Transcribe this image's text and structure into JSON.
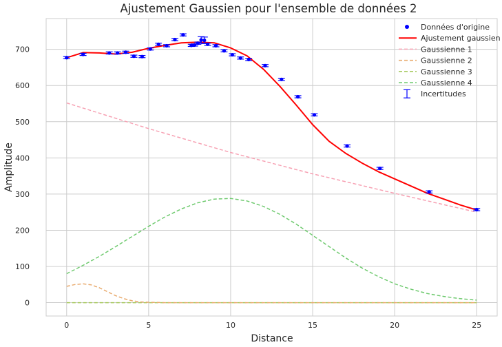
{
  "chart_data": {
    "type": "line",
    "title": "Ajustement Gaussien pour l'ensemble de données 2",
    "xlabel": "Distance",
    "ylabel": "Amplitude",
    "xlim": [
      -1.25,
      26.25
    ],
    "ylim": [
      -37,
      785
    ],
    "xticks": [
      0,
      5,
      10,
      15,
      20,
      25
    ],
    "yticks": [
      0,
      100,
      200,
      300,
      400,
      500,
      600,
      700
    ],
    "grid": true,
    "legend_position": "top-right",
    "data_points": {
      "name": "Données d'origine",
      "color": "#0000ff",
      "x": [
        0,
        1,
        2.6,
        3.1,
        3.6,
        4.1,
        4.6,
        5.1,
        5.6,
        6.1,
        6.6,
        7.1,
        7.6,
        7.8,
        8.0,
        8.2,
        8.4,
        8.6,
        9.1,
        9.6,
        10.1,
        10.6,
        11.1,
        12.1,
        13.1,
        14.1,
        15.1,
        17.1,
        19.1,
        22.1,
        25.0
      ],
      "y": [
        677,
        686,
        690,
        690,
        692,
        681,
        680,
        701,
        714,
        710,
        727,
        740,
        711,
        712,
        717,
        726,
        725,
        714,
        710,
        696,
        685,
        676,
        672,
        655,
        617,
        569,
        519,
        433,
        371,
        306,
        257
      ]
    },
    "error_bars": {
      "name": "Incertitudes",
      "color": "#0000ff",
      "x": [
        0,
        1,
        2.6,
        3.1,
        3.6,
        4.1,
        4.6,
        5.1,
        5.6,
        6.1,
        6.6,
        7.1,
        7.6,
        7.8,
        8.0,
        8.2,
        8.4,
        8.6,
        9.1,
        9.6,
        10.1,
        10.6,
        11.1,
        12.1,
        13.1,
        14.1,
        15.1,
        17.1,
        19.1,
        22.1,
        25.0
      ],
      "y": [
        677,
        686,
        690,
        690,
        692,
        681,
        680,
        701,
        714,
        710,
        727,
        740,
        711,
        712,
        717,
        726,
        725,
        714,
        710,
        696,
        685,
        676,
        672,
        655,
        617,
        569,
        519,
        433,
        371,
        306,
        257
      ],
      "err": [
        3,
        3,
        3,
        3,
        3,
        3,
        3,
        3,
        3,
        3,
        3,
        3,
        3,
        3,
        3,
        9,
        9,
        3,
        3,
        3,
        3,
        3,
        3,
        3,
        3,
        3,
        3,
        3,
        3,
        3,
        3
      ]
    },
    "series": [
      {
        "name": "Ajustement gaussien",
        "color": "#ff0000",
        "style": "solid",
        "x": [
          0,
          1,
          2,
          3,
          4,
          5,
          6,
          7,
          8,
          9,
          10,
          11,
          12,
          13,
          14,
          15,
          16,
          17,
          18,
          19,
          20,
          21,
          22,
          23,
          24,
          25
        ],
        "y": [
          677,
          691,
          690,
          687,
          692,
          703,
          711,
          718,
          720,
          718,
          704,
          682,
          645,
          598,
          546,
          492,
          446,
          413,
          386,
          362,
          342,
          322,
          302,
          286,
          270,
          256
        ]
      },
      {
        "name": "Gaussienne 1",
        "color": "#f7a1b3",
        "style": "dashed",
        "x": [
          0,
          5,
          10,
          15,
          20,
          25
        ],
        "y": [
          552,
          481,
          415,
          356,
          302,
          250
        ]
      },
      {
        "name": "Gaussienne 2",
        "color": "#e8a96b",
        "style": "dashed",
        "x": [
          0,
          0.5,
          1,
          1.5,
          2,
          2.5,
          3,
          3.5,
          4,
          4.5,
          5,
          6,
          8,
          10,
          15,
          20,
          25
        ],
        "y": [
          45,
          50,
          52,
          49,
          41,
          30,
          19,
          11,
          5,
          2,
          1,
          0,
          0,
          0,
          0,
          0,
          0
        ]
      },
      {
        "name": "Gaussienne 3",
        "color": "#a6c95c",
        "style": "dashed",
        "x": [
          0,
          5,
          10,
          15,
          20,
          25
        ],
        "y": [
          0,
          0,
          0,
          0,
          0,
          0
        ]
      },
      {
        "name": "Gaussienne 4",
        "color": "#6fca6f",
        "style": "dashed",
        "x": [
          0,
          1,
          2,
          3,
          4,
          5,
          6,
          7,
          8,
          9,
          10,
          11,
          12,
          13,
          14,
          15,
          16,
          17,
          18,
          19,
          20,
          21,
          22,
          23,
          24,
          25
        ],
        "y": [
          80,
          103,
          128,
          155,
          183,
          211,
          237,
          259,
          276,
          286,
          288,
          281,
          266,
          244,
          217,
          186,
          155,
          124,
          96,
          72,
          52,
          37,
          25,
          17,
          11,
          7
        ]
      }
    ]
  }
}
